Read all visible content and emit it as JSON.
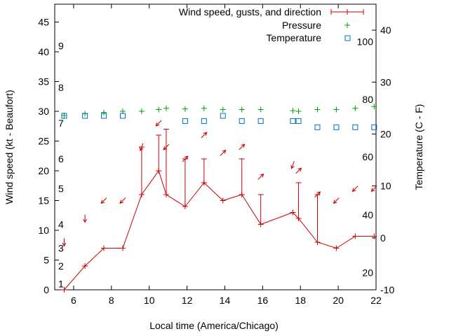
{
  "chart_data": {
    "type": "line",
    "xlabel": "Local time (America/Chicago)",
    "ylabel": "Wind speed (kt - Beaufort)",
    "y2label": "Temperature (C - F)",
    "xlim": [
      5,
      22
    ],
    "ylim": [
      0,
      48
    ],
    "y2lim": [
      -10,
      45
    ],
    "xticks": [
      6,
      8,
      10,
      12,
      14,
      16,
      18,
      20,
      22
    ],
    "yticks": [
      0,
      5,
      10,
      15,
      20,
      25,
      30,
      35,
      40,
      45
    ],
    "y2ticks": [
      -10,
      0,
      10,
      20,
      30,
      40
    ],
    "beaufort_labels": [
      {
        "text": "1",
        "kt": 1
      },
      {
        "text": "2",
        "kt": 4
      },
      {
        "text": "3",
        "kt": 7
      },
      {
        "text": "4",
        "kt": 11
      },
      {
        "text": "5",
        "kt": 17
      },
      {
        "text": "6",
        "kt": 22
      },
      {
        "text": "7",
        "kt": 28
      },
      {
        "text": "8",
        "kt": 34
      },
      {
        "text": "9",
        "kt": 41
      }
    ],
    "fahrenheit_labels": [
      {
        "text": "20",
        "c": -6.7
      },
      {
        "text": "40",
        "c": 4.4
      },
      {
        "text": "60",
        "c": 15.6
      },
      {
        "text": "80",
        "c": 26.7
      },
      {
        "text": "100",
        "c": 37.8
      }
    ],
    "legend": {
      "placement": "top-right",
      "entries": [
        "Wind speed, gusts, and direction",
        "Pressure",
        "Temperature"
      ]
    },
    "colors": {
      "wind": "#cc0000",
      "pressure": "#00a000",
      "temperature": "#0070c0"
    },
    "series": [
      {
        "name": "Wind speed, gusts, and direction",
        "axis": "left",
        "x": [
          5.5,
          6.6,
          7.6,
          8.6,
          9.6,
          10.5,
          10.9,
          11.9,
          12.9,
          13.9,
          14.9,
          15.9,
          17.6,
          17.9,
          18.9,
          19.9,
          20.9,
          21.9
        ],
        "values": [
          0,
          4,
          7,
          7,
          16,
          20,
          16,
          14,
          18,
          15,
          16,
          11,
          13,
          12,
          8,
          7,
          9,
          9
        ],
        "gusts": [
          null,
          null,
          null,
          null,
          24,
          26,
          27,
          22,
          22,
          null,
          22,
          16,
          null,
          18,
          16,
          null,
          null,
          null
        ],
        "direction_arrows_deg": [
          180,
          180,
          225,
          225,
          200,
          225,
          225,
          45,
          45,
          45,
          45,
          45,
          200,
          45,
          45,
          225,
          225,
          225
        ]
      },
      {
        "name": "Pressure",
        "axis": "left",
        "x": [
          5.5,
          6.6,
          7.6,
          8.6,
          9.6,
          10.5,
          10.9,
          11.9,
          12.9,
          13.9,
          14.9,
          15.9,
          17.6,
          17.9,
          18.9,
          19.9,
          20.9,
          21.9
        ],
        "values": [
          29.3,
          29.6,
          29.8,
          30.0,
          30.0,
          30.3,
          30.5,
          30.4,
          30.5,
          30.3,
          30.3,
          30.3,
          30.1,
          30.0,
          30.3,
          30.3,
          30.5,
          30.8
        ]
      },
      {
        "name": "Temperature",
        "axis": "right",
        "x": [
          5.5,
          6.6,
          7.6,
          8.6,
          11.9,
          12.9,
          13.9,
          14.9,
          15.9,
          17.6,
          17.9,
          18.9,
          19.9,
          20.9,
          21.9
        ],
        "values": [
          23.5,
          23.5,
          23.5,
          23.5,
          22.5,
          22.5,
          23.5,
          22.5,
          22.5,
          22.5,
          22.5,
          21.3,
          21.3,
          21.3,
          21.3
        ]
      }
    ]
  }
}
